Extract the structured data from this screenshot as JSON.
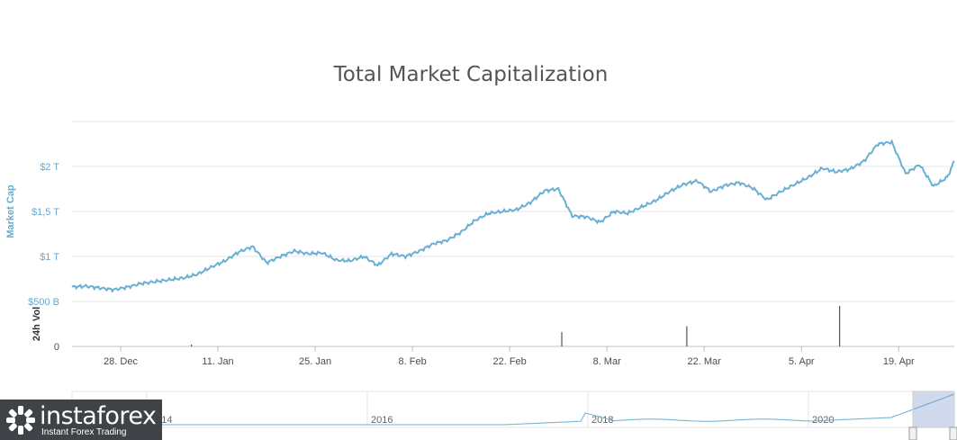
{
  "chart_data": {
    "type": "line",
    "title": "Total Market Capitalization",
    "ylabel": "Market Cap",
    "volume_label": "24h Vol",
    "y_ticks": [
      "$2 T",
      "$1,5 T",
      "$1 T",
      "$500 B"
    ],
    "y_tick_values": [
      2000,
      1500,
      1000,
      500
    ],
    "volume_ticks": [
      "0"
    ],
    "x_ticks": [
      "28. Dec",
      "11. Jan",
      "25. Jan",
      "8. Feb",
      "22. Feb",
      "8. Mar",
      "22. Mar",
      "5. Apr",
      "19. Apr"
    ],
    "x_tick_days": [
      7,
      21,
      35,
      49,
      63,
      77,
      91,
      105,
      119
    ],
    "ylim": [
      500,
      2500
    ],
    "xlim": [
      0,
      127
    ],
    "grid": true,
    "series": [
      {
        "color": "#6ab0d4",
        "x": [
          0,
          2,
          4,
          6,
          8,
          10,
          12,
          14,
          16,
          18,
          20,
          22,
          24,
          26,
          28,
          30,
          32,
          34,
          36,
          38,
          40,
          42,
          44,
          46,
          48,
          50,
          52,
          54,
          56,
          58,
          60,
          62,
          64,
          66,
          68,
          70,
          72,
          74,
          76,
          78,
          80,
          82,
          84,
          86,
          88,
          90,
          92,
          94,
          96,
          98,
          100,
          102,
          104,
          106,
          108,
          110,
          112,
          114,
          116,
          118,
          120,
          122,
          124,
          126,
          127
        ],
        "values": [
          660,
          670,
          650,
          630,
          660,
          700,
          720,
          740,
          760,
          800,
          880,
          950,
          1050,
          1110,
          930,
          1000,
          1060,
          1030,
          1040,
          960,
          950,
          1000,
          900,
          1030,
          1000,
          1060,
          1140,
          1180,
          1270,
          1400,
          1480,
          1500,
          1520,
          1600,
          1730,
          1750,
          1450,
          1440,
          1380,
          1500,
          1480,
          1550,
          1620,
          1720,
          1800,
          1840,
          1720,
          1790,
          1820,
          1760,
          1630,
          1720,
          1800,
          1880,
          1980,
          1940,
          1970,
          2060,
          2250,
          2270,
          1920,
          2020,
          1780,
          1880,
          2060
        ]
      }
    ],
    "volume_spikes": [
      {
        "x": 70.5,
        "value": 0.32
      },
      {
        "x": 88.5,
        "value": 0.45
      },
      {
        "x": 110.5,
        "value": 0.9
      },
      {
        "x": 17.2,
        "value": 0.04
      }
    ],
    "navigator": {
      "x_ticks": [
        "2014",
        "2016",
        "2018",
        "2020"
      ],
      "selection": "right-end"
    }
  },
  "branding": {
    "name": "instaforex",
    "tagline": "Instant Forex Trading"
  }
}
